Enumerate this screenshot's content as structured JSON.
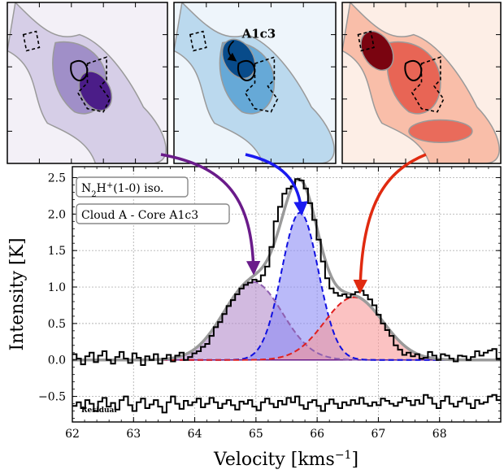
{
  "panels": [
    {
      "cmap": "purple",
      "colors": [
        "#f3f0f7",
        "#c9bfe0",
        "#8e79be",
        "#4b1d88"
      ],
      "label": ""
    },
    {
      "cmap": "blue",
      "colors": [
        "#eef5fb",
        "#a5cde8",
        "#4a98cf",
        "#084b8a"
      ],
      "label": "A1c3"
    },
    {
      "cmap": "red",
      "colors": [
        "#fdeee6",
        "#f6a98e",
        "#e2473a",
        "#7a0410"
      ],
      "label": ""
    }
  ],
  "legend_boxes": [
    "N$_2$H$^+$(1-0) iso.",
    "Cloud A - Core A1c3"
  ],
  "legend_text": [
    {
      "parts": [
        {
          "t": "N"
        },
        {
          "t": "2",
          "sub": true
        },
        {
          "t": "H"
        },
        {
          "t": "+",
          "sup": true
        },
        {
          "t": "(1-0) iso."
        }
      ]
    },
    {
      "parts": [
        {
          "t": "Cloud A - Core A1c3"
        }
      ]
    }
  ],
  "residual_label": "Residual",
  "arrow_colors": {
    "purple": "#6a1b8a",
    "blue": "#1a1af0",
    "red": "#e02a10"
  },
  "chart_data": {
    "type": "line",
    "xlabel": "Velocity [kms$^{-1}$]",
    "xlabel_parts": {
      "main": "Velocity [kms",
      "sup": "−1",
      "close": "]"
    },
    "ylabel": "Intensity [K]",
    "xlim": [
      62,
      69
    ],
    "ylim": [
      -0.85,
      2.65
    ],
    "xticks": [
      62,
      63,
      64,
      65,
      66,
      67,
      68
    ],
    "yticks": [
      -0.5,
      0.0,
      0.5,
      1.0,
      1.5,
      2.0,
      2.5
    ],
    "ytick_labels": [
      "−0.5",
      "0.0",
      "0.5",
      "1.0",
      "1.5",
      "2.0",
      "2.5"
    ],
    "grid": true,
    "residual_offset": -0.6,
    "components": [
      {
        "name": "",
        "color": "#8e5fb0",
        "fill": "#b48ccc",
        "amp": 1.07,
        "center": 64.95,
        "sigma": 0.48
      },
      {
        "name": "",
        "color": "#1010e0",
        "fill": "#8c8cf5",
        "amp": 2.02,
        "center": 65.72,
        "sigma": 0.3
      },
      {
        "name": "",
        "color": "#e02020",
        "fill": "#f89a9a",
        "amp": 0.86,
        "center": 66.6,
        "sigma": 0.48
      }
    ],
    "spectrum_x": [
      62.0,
      62.07,
      62.14,
      62.21,
      62.28,
      62.35,
      62.42,
      62.49,
      62.56,
      62.63,
      62.7,
      62.77,
      62.84,
      62.91,
      62.98,
      63.05,
      63.12,
      63.19,
      63.26,
      63.33,
      63.4,
      63.47,
      63.54,
      63.61,
      63.68,
      63.75,
      63.82,
      63.89,
      63.96,
      64.03,
      64.1,
      64.17,
      64.24,
      64.31,
      64.38,
      64.45,
      64.52,
      64.59,
      64.66,
      64.73,
      64.8,
      64.87,
      64.94,
      65.01,
      65.08,
      65.15,
      65.22,
      65.29,
      65.36,
      65.43,
      65.5,
      65.57,
      65.64,
      65.71,
      65.78,
      65.85,
      65.92,
      65.99,
      66.06,
      66.13,
      66.2,
      66.27,
      66.34,
      66.41,
      66.48,
      66.55,
      66.62,
      66.69,
      66.76,
      66.83,
      66.9,
      66.97,
      67.04,
      67.11,
      67.18,
      67.25,
      67.32,
      67.39,
      67.46,
      67.53,
      67.6,
      67.67,
      67.74,
      67.81,
      67.88,
      67.95,
      68.02,
      68.09,
      68.16,
      68.23,
      68.3,
      68.37,
      68.44,
      68.51,
      68.58,
      68.65,
      68.72,
      68.79,
      68.86,
      68.93
    ],
    "spectrum_y": [
      0.08,
      0.02,
      -0.06,
      0.05,
      0.1,
      -0.03,
      0.06,
      0.12,
      0.0,
      -0.05,
      0.04,
      0.11,
      0.02,
      -0.04,
      0.09,
      0.03,
      -0.07,
      0.05,
      0.0,
      0.08,
      -0.05,
      0.02,
      0.07,
      -0.02,
      0.06,
      0.1,
      0.0,
      0.04,
      0.09,
      0.12,
      0.18,
      0.22,
      0.33,
      0.45,
      0.52,
      0.63,
      0.74,
      0.82,
      0.9,
      0.98,
      1.03,
      1.06,
      1.1,
      1.08,
      1.16,
      1.28,
      1.55,
      1.9,
      2.1,
      2.28,
      2.35,
      2.38,
      2.48,
      2.46,
      2.35,
      2.15,
      1.92,
      1.65,
      1.35,
      1.12,
      0.98,
      0.92,
      0.88,
      0.9,
      0.86,
      0.9,
      0.93,
      0.95,
      0.89,
      0.83,
      0.75,
      0.62,
      0.5,
      0.41,
      0.33,
      0.2,
      0.14,
      0.07,
      0.1,
      0.05,
      0.08,
      0.02,
      0.03,
      0.11,
      0.06,
      0.0,
      0.08,
      0.06,
      0.02,
      -0.02,
      0.06,
      0.05,
      0.0,
      0.04,
      0.12,
      0.06,
      0.1,
      0.13,
      0.15,
      0.02
    ],
    "residual_y": [
      -0.63,
      -0.58,
      -0.66,
      -0.55,
      -0.6,
      -0.7,
      -0.57,
      -0.52,
      -0.64,
      -0.59,
      -0.68,
      -0.55,
      -0.5,
      -0.62,
      -0.7,
      -0.58,
      -0.53,
      -0.66,
      -0.61,
      -0.55,
      -0.64,
      -0.72,
      -0.58,
      -0.5,
      -0.6,
      -0.67,
      -0.56,
      -0.62,
      -0.58,
      -0.53,
      -0.65,
      -0.6,
      -0.52,
      -0.58,
      -0.66,
      -0.6,
      -0.55,
      -0.62,
      -0.68,
      -0.57,
      -0.6,
      -0.55,
      -0.64,
      -0.69,
      -0.58,
      -0.53,
      -0.6,
      -0.65,
      -0.56,
      -0.61,
      -0.52,
      -0.58,
      -0.5,
      -0.62,
      -0.67,
      -0.58,
      -0.55,
      -0.63,
      -0.7,
      -0.6,
      -0.54,
      -0.6,
      -0.66,
      -0.58,
      -0.62,
      -0.55,
      -0.6,
      -0.52,
      -0.6,
      -0.63,
      -0.58,
      -0.62,
      -0.53,
      -0.56,
      -0.6,
      -0.63,
      -0.58,
      -0.52,
      -0.56,
      -0.62,
      -0.55,
      -0.6,
      -0.48,
      -0.52,
      -0.6,
      -0.66,
      -0.56,
      -0.5,
      -0.6,
      -0.64,
      -0.57,
      -0.52,
      -0.6,
      -0.66,
      -0.55,
      -0.6,
      -0.58,
      -0.5,
      -0.48,
      -0.55
    ],
    "model_color": "#9a9a9a"
  }
}
